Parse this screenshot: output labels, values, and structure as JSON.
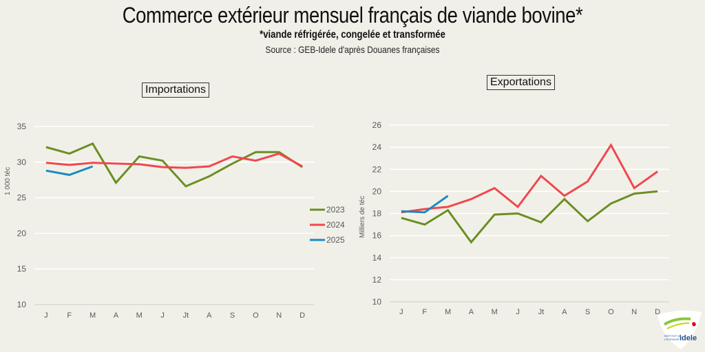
{
  "header": {
    "title": "Commerce extérieur mensuel français de viande bovine*",
    "subtitle": "*viande réfrigérée, congelée et transformée",
    "source": "Source : GEB-Idele d'après Douanes françaises"
  },
  "logo": {
    "text": "idele",
    "org": "INSTITUT DE L'ÉLEVAGE"
  },
  "chart_data": [
    {
      "type": "line",
      "title": "Importations",
      "ylabel": "1 000 téc",
      "xlabel": "",
      "categories": [
        "J",
        "F",
        "M",
        "A",
        "M",
        "J",
        "Jt",
        "A",
        "S",
        "O",
        "N",
        "D"
      ],
      "ylim": [
        10,
        35
      ],
      "yticks": [
        10,
        15,
        20,
        25,
        30,
        35
      ],
      "grid": true,
      "legend": "right",
      "series": [
        {
          "name": "2023",
          "color": "#6b8e23",
          "values": [
            32.1,
            31.2,
            32.6,
            27.1,
            30.8,
            30.2,
            26.6,
            28.0,
            29.8,
            31.4,
            31.4,
            29.3
          ]
        },
        {
          "name": "2024",
          "color": "#f0474f",
          "values": [
            29.9,
            29.6,
            29.9,
            29.8,
            29.7,
            29.3,
            29.2,
            29.4,
            30.8,
            30.2,
            31.2,
            29.4
          ]
        },
        {
          "name": "2025",
          "color": "#1a8ac2",
          "values": [
            28.8,
            28.2,
            29.4
          ]
        }
      ]
    },
    {
      "type": "line",
      "title": "Exportations",
      "ylabel": "Milliers de téc",
      "xlabel": "",
      "categories": [
        "J",
        "F",
        "M",
        "A",
        "M",
        "J",
        "Jt",
        "A",
        "S",
        "O",
        "N",
        "D"
      ],
      "ylim": [
        10,
        26
      ],
      "yticks": [
        10,
        12,
        14,
        16,
        18,
        20,
        22,
        24,
        26
      ],
      "grid": true,
      "legend": "none",
      "series": [
        {
          "name": "2023",
          "color": "#6b8e23",
          "values": [
            17.6,
            17.0,
            18.3,
            15.4,
            17.9,
            18.0,
            17.2,
            19.3,
            17.3,
            18.9,
            19.8,
            20.0
          ]
        },
        {
          "name": "2024",
          "color": "#f0474f",
          "values": [
            18.1,
            18.4,
            18.6,
            19.3,
            20.3,
            18.6,
            21.4,
            19.6,
            20.9,
            24.2,
            20.3,
            21.8
          ]
        },
        {
          "name": "2025",
          "color": "#1a8ac2",
          "values": [
            18.2,
            18.1,
            19.6
          ]
        }
      ]
    }
  ]
}
